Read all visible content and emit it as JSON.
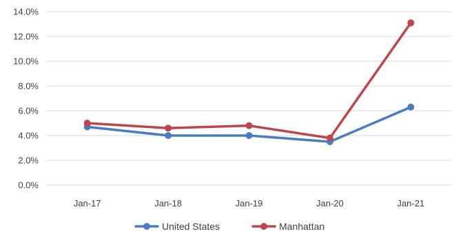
{
  "chart_data": {
    "type": "line",
    "categories": [
      "Jan-17",
      "Jan-18",
      "Jan-19",
      "Jan-20",
      "Jan-21"
    ],
    "series": [
      {
        "name": "United States",
        "values": [
          4.7,
          4.0,
          4.0,
          3.5,
          6.3
        ],
        "color": "#4a7cc4"
      },
      {
        "name": "Manhattan",
        "values": [
          5.0,
          4.6,
          4.8,
          3.8,
          13.1
        ],
        "color": "#c0454b"
      }
    ],
    "y_ticks": [
      "0.0%",
      "2.0%",
      "4.0%",
      "6.0%",
      "8.0%",
      "10.0%",
      "12.0%",
      "14.0%"
    ],
    "ylim": [
      0,
      14
    ],
    "grid": "horizontal",
    "legend_position": "bottom"
  }
}
